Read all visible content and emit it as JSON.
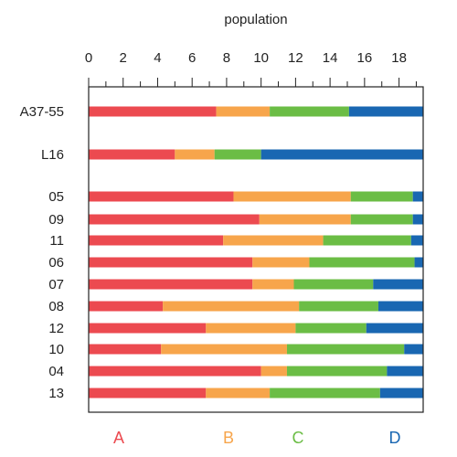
{
  "chart_data": {
    "type": "bar",
    "stacked": true,
    "orientation": "horizontal",
    "title": "",
    "xlabel": "population",
    "ylabel": "",
    "xlim": [
      0,
      19.4
    ],
    "x_ticks": [
      "0",
      "2",
      "4",
      "6",
      "8",
      "10",
      "12",
      "14",
      "16",
      "18"
    ],
    "x_axis_position": "top",
    "grid": false,
    "legend_position": "bottom",
    "categories": [
      "A37-55",
      "L16",
      "05",
      "09",
      "11",
      "06",
      "07",
      "08",
      "12",
      "10",
      "04",
      "13"
    ],
    "series": [
      {
        "name": "A",
        "color": "#ec4a50",
        "values": [
          7.4,
          5.0,
          8.4,
          9.9,
          7.8,
          9.5,
          9.5,
          4.3,
          6.8,
          4.2,
          10.0,
          6.8
        ]
      },
      {
        "name": "B",
        "color": "#f7a54b",
        "values": [
          3.1,
          2.3,
          6.8,
          5.3,
          5.8,
          3.3,
          2.4,
          7.9,
          5.2,
          7.3,
          1.5,
          3.7
        ]
      },
      {
        "name": "C",
        "color": "#6bbd45",
        "values": [
          4.6,
          2.7,
          3.6,
          3.6,
          5.1,
          6.1,
          4.6,
          4.6,
          4.1,
          6.8,
          5.8,
          6.4
        ]
      },
      {
        "name": "D",
        "color": "#1967b2",
        "values": [
          4.3,
          9.4,
          0.6,
          0.6,
          0.7,
          0.5,
          2.9,
          2.6,
          3.3,
          1.1,
          2.1,
          2.5
        ]
      }
    ]
  }
}
